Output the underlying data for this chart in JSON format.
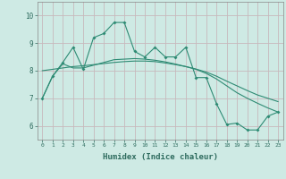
{
  "x": [
    0,
    1,
    2,
    3,
    4,
    5,
    6,
    7,
    8,
    9,
    10,
    11,
    12,
    13,
    14,
    15,
    16,
    17,
    18,
    19,
    20,
    21,
    22,
    23
  ],
  "y_line1": [
    7.0,
    7.8,
    8.3,
    8.85,
    8.05,
    9.2,
    9.35,
    9.75,
    9.75,
    8.7,
    8.5,
    8.85,
    8.5,
    8.5,
    8.85,
    7.75,
    7.75,
    6.8,
    6.05,
    6.1,
    5.85,
    5.85,
    6.35,
    6.5
  ],
  "y_line2": [
    8.0,
    8.05,
    8.1,
    8.15,
    8.18,
    8.22,
    8.26,
    8.3,
    8.33,
    8.35,
    8.35,
    8.33,
    8.28,
    8.22,
    8.15,
    8.06,
    7.95,
    7.8,
    7.62,
    7.45,
    7.28,
    7.12,
    7.0,
    6.88
  ],
  "y_line3": [
    7.0,
    7.8,
    8.25,
    8.1,
    8.1,
    8.2,
    8.3,
    8.4,
    8.42,
    8.44,
    8.42,
    8.38,
    8.32,
    8.24,
    8.15,
    8.05,
    7.9,
    7.7,
    7.45,
    7.2,
    7.0,
    6.82,
    6.65,
    6.5
  ],
  "line_color": "#2e8b74",
  "bg_color": "#ceeae4",
  "grid_color": "#c8b8bc",
  "xlabel": "Humidex (Indice chaleur)",
  "ylim": [
    5.5,
    10.5
  ],
  "xlim": [
    -0.5,
    23.5
  ],
  "yticks": [
    6,
    7,
    8,
    9,
    10
  ],
  "xticks": [
    0,
    1,
    2,
    3,
    4,
    5,
    6,
    7,
    8,
    9,
    10,
    11,
    12,
    13,
    14,
    15,
    16,
    17,
    18,
    19,
    20,
    21,
    22,
    23
  ]
}
